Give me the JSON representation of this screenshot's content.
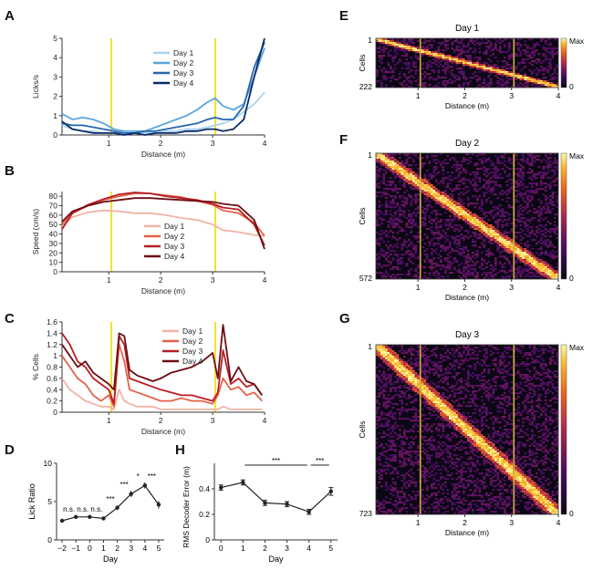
{
  "panel_letters": [
    "A",
    "B",
    "C",
    "D",
    "H",
    "E",
    "F",
    "G"
  ],
  "colors": {
    "blues": [
      "#a9d3ef",
      "#5aa5dc",
      "#2467b0",
      "#0a2a66"
    ],
    "reds": [
      "#f2b3a6",
      "#e4624a",
      "#b81f24",
      "#6b0d14"
    ],
    "yellow": "#f2e22a",
    "heat_bg": "#0b0714"
  },
  "chart_data": [
    {
      "id": "A",
      "type": "line",
      "xlabel": "Distance (m)",
      "ylabel": "Licks/s",
      "xlim": [
        0.1,
        4
      ],
      "ylim": [
        0,
        5
      ],
      "xticks": [
        1,
        2,
        3,
        4
      ],
      "yticks": [
        0,
        1,
        2,
        3,
        4,
        5
      ],
      "vlines": [
        1.05,
        3.05
      ],
      "x": [
        0.1,
        0.3,
        0.5,
        0.7,
        0.9,
        1.1,
        1.3,
        1.5,
        1.7,
        1.9,
        2.1,
        2.3,
        2.5,
        2.7,
        2.9,
        3.05,
        3.2,
        3.4,
        3.6,
        3.8,
        4.0
      ],
      "series": [
        {
          "name": "Day 1",
          "values": [
            0.5,
            0.3,
            0.2,
            0.2,
            0.1,
            0.1,
            0.1,
            0.1,
            0.1,
            0.1,
            0.2,
            0.2,
            0.3,
            0.3,
            0.4,
            0.5,
            0.6,
            0.8,
            1.2,
            1.6,
            2.2
          ]
        },
        {
          "name": "Day 2",
          "values": [
            1.1,
            0.8,
            0.9,
            0.8,
            0.6,
            0.3,
            0.2,
            0.2,
            0.2,
            0.4,
            0.6,
            0.8,
            1.0,
            1.3,
            1.7,
            1.9,
            1.5,
            1.3,
            1.6,
            3.0,
            4.5
          ]
        },
        {
          "name": "Day 3",
          "values": [
            0.6,
            0.5,
            0.5,
            0.4,
            0.3,
            0.2,
            0.1,
            0.1,
            0.2,
            0.2,
            0.3,
            0.4,
            0.5,
            0.6,
            0.8,
            0.9,
            0.8,
            0.8,
            1.5,
            3.5,
            4.8
          ]
        },
        {
          "name": "Day 4",
          "values": [
            0.7,
            0.3,
            0.2,
            0.1,
            0.1,
            0.1,
            0.0,
            0.1,
            0.0,
            0.1,
            0.1,
            0.1,
            0.2,
            0.2,
            0.3,
            0.3,
            0.2,
            0.3,
            0.8,
            3.0,
            5.0
          ]
        }
      ]
    },
    {
      "id": "B",
      "type": "line",
      "xlabel": "Distance (m)",
      "ylabel": "Speed (cm/s)",
      "xlim": [
        0.1,
        4
      ],
      "ylim": [
        0,
        85
      ],
      "xticks": [
        1,
        2,
        3,
        4
      ],
      "yticks": [
        0,
        10,
        20,
        30,
        40,
        50,
        60,
        70,
        80
      ],
      "vlines": [
        1.05,
        3.05
      ],
      "x": [
        0.1,
        0.3,
        0.6,
        0.9,
        1.2,
        1.5,
        1.8,
        2.1,
        2.4,
        2.7,
        3.0,
        3.2,
        3.5,
        3.8,
        4.0
      ],
      "series": [
        {
          "name": "Day 1",
          "values": [
            48,
            58,
            63,
            65,
            64,
            62,
            62,
            60,
            57,
            55,
            50,
            44,
            42,
            39,
            38
          ]
        },
        {
          "name": "Day 2",
          "values": [
            50,
            62,
            70,
            76,
            80,
            83,
            83,
            81,
            79,
            75,
            71,
            65,
            62,
            52,
            38
          ]
        },
        {
          "name": "Day 3",
          "values": [
            45,
            62,
            71,
            77,
            82,
            84,
            83,
            80,
            78,
            76,
            72,
            68,
            66,
            50,
            28
          ]
        },
        {
          "name": "Day 4",
          "values": [
            53,
            64,
            70,
            74,
            76,
            78,
            78,
            77,
            76,
            75,
            74,
            72,
            70,
            55,
            24
          ]
        }
      ]
    },
    {
      "id": "C",
      "type": "line",
      "xlabel": "Distance (m)",
      "ylabel": "% Cells",
      "xlim": [
        0.1,
        4
      ],
      "ylim": [
        0,
        1.6
      ],
      "xticks": [
        1,
        2,
        3,
        4
      ],
      "yticks": [
        0,
        0.2,
        0.4,
        0.6,
        0.8,
        1,
        1.2,
        1.4,
        1.6
      ],
      "vlines": [
        1.05,
        3.05
      ],
      "x": [
        0.1,
        0.25,
        0.4,
        0.55,
        0.7,
        0.85,
        1.0,
        1.1,
        1.2,
        1.3,
        1.4,
        1.55,
        1.7,
        1.85,
        2.0,
        2.2,
        2.4,
        2.6,
        2.8,
        3.0,
        3.1,
        3.2,
        3.35,
        3.5,
        3.65,
        3.8,
        3.95
      ],
      "series": [
        {
          "name": "Day 1",
          "values": [
            0.6,
            0.4,
            0.3,
            0.2,
            0.15,
            0.1,
            0.1,
            0.05,
            0.4,
            0.2,
            0.15,
            0.1,
            0.1,
            0.1,
            0.05,
            0.05,
            0.05,
            0.05,
            0.05,
            0.05,
            0.05,
            0.1,
            0.05,
            0.05,
            0.05,
            0.05,
            0.05
          ]
        },
        {
          "name": "Day 2",
          "values": [
            1.0,
            0.8,
            0.6,
            0.5,
            0.3,
            0.2,
            0.3,
            0.1,
            1.2,
            0.9,
            0.4,
            0.35,
            0.3,
            0.25,
            0.2,
            0.2,
            0.25,
            0.2,
            0.2,
            0.15,
            0.3,
            0.6,
            0.4,
            0.45,
            0.3,
            0.35,
            0.2
          ]
        },
        {
          "name": "Day 3",
          "values": [
            1.4,
            1.2,
            0.9,
            0.8,
            0.6,
            0.5,
            0.4,
            0.15,
            1.35,
            1.2,
            0.6,
            0.55,
            0.5,
            0.45,
            0.4,
            0.35,
            0.3,
            0.3,
            0.25,
            0.2,
            0.35,
            1.1,
            0.5,
            0.6,
            0.45,
            0.5,
            0.3
          ]
        },
        {
          "name": "Day 4",
          "values": [
            1.2,
            1.0,
            0.8,
            0.9,
            0.7,
            0.6,
            0.5,
            0.4,
            1.4,
            1.35,
            0.75,
            0.65,
            0.6,
            0.55,
            0.6,
            0.7,
            0.75,
            0.8,
            0.9,
            1.05,
            0.6,
            1.55,
            0.55,
            0.8,
            0.55,
            0.5,
            0.3
          ]
        }
      ]
    },
    {
      "id": "D",
      "type": "line",
      "xlabel": "Day",
      "ylabel": "Lick Ratio",
      "xlim": [
        -2.4,
        5.4
      ],
      "ylim": [
        0,
        10
      ],
      "xticks": [
        -2,
        -1,
        0,
        1,
        2,
        3,
        4,
        5
      ],
      "xticklabels": [
        "−2",
        "−1",
        "0",
        "1",
        "2",
        "3",
        "4",
        "5"
      ],
      "yticks": [
        0,
        5,
        10
      ],
      "x": [
        -2,
        -1,
        0,
        1,
        2,
        3,
        4,
        5
      ],
      "values": [
        2.5,
        3.0,
        3.0,
        2.8,
        4.2,
        6.0,
        7.1,
        4.6
      ],
      "errors": [
        0.2,
        0.2,
        0.2,
        0.2,
        0.3,
        0.4,
        0.4,
        0.5
      ],
      "annotations": [
        "n.s.",
        "n.s.",
        "n.s.",
        "***",
        "***",
        "*",
        "***"
      ]
    },
    {
      "id": "H",
      "type": "line",
      "xlabel": "Day",
      "ylabel": "RMS Decoder Error (m)",
      "xlim": [
        -0.3,
        5.3
      ],
      "ylim": [
        0,
        0.6
      ],
      "xticks": [
        0,
        1,
        2,
        3,
        4,
        5
      ],
      "yticks": [
        0,
        0.2,
        0.4
      ],
      "x": [
        0,
        1,
        2,
        3,
        4,
        5
      ],
      "values": [
        0.41,
        0.45,
        0.29,
        0.28,
        0.22,
        0.38
      ],
      "errors": [
        0.02,
        0.02,
        0.02,
        0.02,
        0.02,
        0.03
      ],
      "brackets": [
        {
          "x1": 1,
          "x2": 4,
          "label": "***"
        },
        {
          "x1": 4,
          "x2": 5,
          "label": "***"
        }
      ]
    },
    {
      "id": "E",
      "type": "heatmap",
      "title": "Day 1",
      "xlabel": "Distance (m)",
      "ylabel": "Cells",
      "n_cells": 222,
      "first_label": "1",
      "last_label": "222",
      "xlim": [
        0.1,
        4
      ],
      "xticks": [
        1,
        2,
        3,
        4
      ],
      "vlines": [
        1.05,
        3.05
      ],
      "colorbar": [
        "Max",
        "0"
      ]
    },
    {
      "id": "F",
      "type": "heatmap",
      "title": "Day 2",
      "xlabel": "Distance (m)",
      "ylabel": "Cells",
      "n_cells": 572,
      "first_label": "1",
      "last_label": "572",
      "xlim": [
        0.1,
        4
      ],
      "xticks": [
        1,
        2,
        3,
        4
      ],
      "vlines": [
        1.05,
        3.05
      ],
      "colorbar": [
        "Max",
        "0"
      ]
    },
    {
      "id": "G",
      "type": "heatmap",
      "title": "Day 3",
      "xlabel": "Distance (m)",
      "ylabel": "Cells",
      "n_cells": 723,
      "first_label": "1",
      "last_label": "723",
      "xlim": [
        0.1,
        4
      ],
      "xticks": [
        1,
        2,
        3,
        4
      ],
      "vlines": [
        1.05,
        3.05
      ],
      "colorbar": [
        "Max",
        "0"
      ]
    }
  ]
}
